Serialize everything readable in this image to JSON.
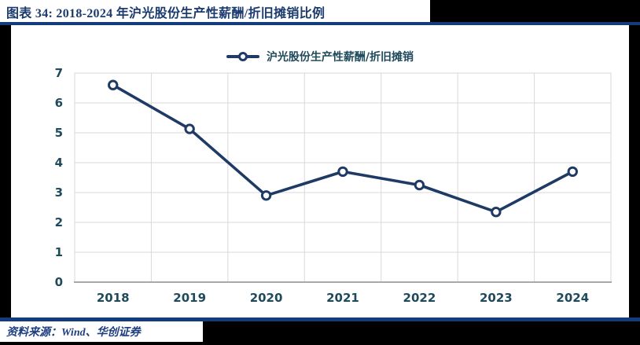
{
  "header": {
    "title": "图表 34:  2018-2024 年沪光股份生产性薪酬/折旧摊销比例"
  },
  "chart_data": {
    "type": "line",
    "categories": [
      "2018",
      "2019",
      "2020",
      "2021",
      "2022",
      "2023",
      "2024"
    ],
    "series": [
      {
        "name": "沪光股份生产性薪酬/折旧摊销",
        "values": [
          6.6,
          5.13,
          2.9,
          3.7,
          3.25,
          2.35,
          3.7
        ]
      }
    ],
    "title": "",
    "xlabel": "",
    "ylabel": "",
    "ylim": [
      0,
      7
    ],
    "ytick_step": 1,
    "grid": "both",
    "legend_position": "top-center",
    "legend_marker": "line-with-open-circle"
  },
  "footer": {
    "source": "资料来源：Wind、华创证券"
  },
  "colors": {
    "page_background": "#000000",
    "panel_background": "#ffffff",
    "rule_navy": "#123c7c",
    "title_text": "#1c3b6e",
    "series_line": "#1f3a64",
    "marker_fill": "#ffffff",
    "tick_text": "#1e4a5c",
    "gridline": "#d9d9d9",
    "plot_border": "#d9d9d9",
    "axis_line": "#a8a8a8"
  }
}
